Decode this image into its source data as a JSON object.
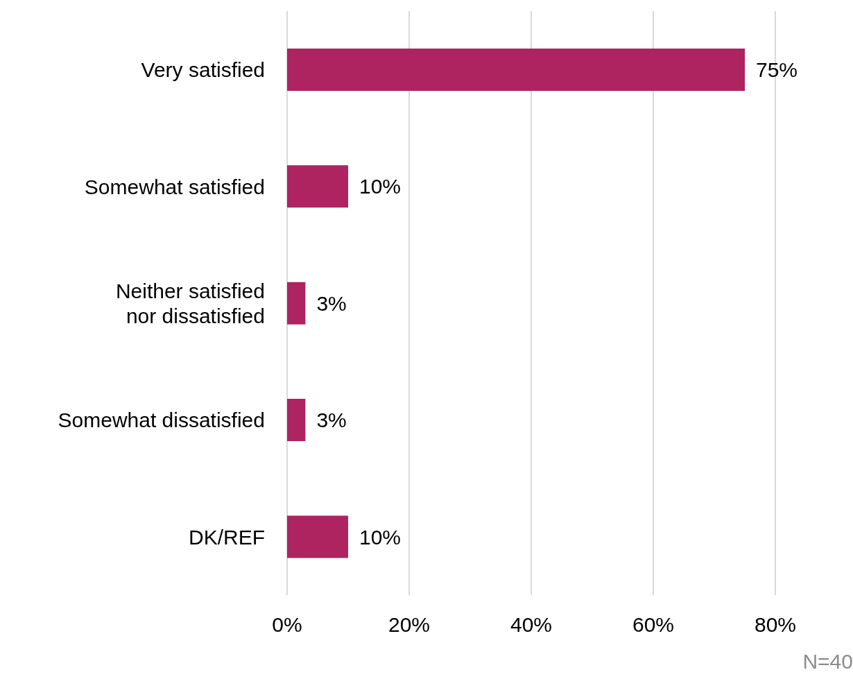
{
  "chart_data": {
    "type": "bar",
    "orientation": "horizontal",
    "categories": [
      "Very satisfied",
      "Somewhat satisfied",
      "Neither satisfied nor dissatisfied",
      "Somewhat dissatisfied",
      "DK/REF"
    ],
    "values": [
      75,
      10,
      3,
      3,
      10
    ],
    "value_labels": [
      "75%",
      "10%",
      "3%",
      "3%",
      "10%"
    ],
    "color": "#ad2461",
    "xlim": [
      0,
      80
    ],
    "xticks": [
      {
        "value": 0,
        "label": "0%"
      },
      {
        "value": 20,
        "label": "20%"
      },
      {
        "value": 40,
        "label": "40%"
      },
      {
        "value": 60,
        "label": "60%"
      },
      {
        "value": 80,
        "label": "80%"
      }
    ],
    "grid": "x",
    "annotations": [
      "N=40"
    ]
  }
}
